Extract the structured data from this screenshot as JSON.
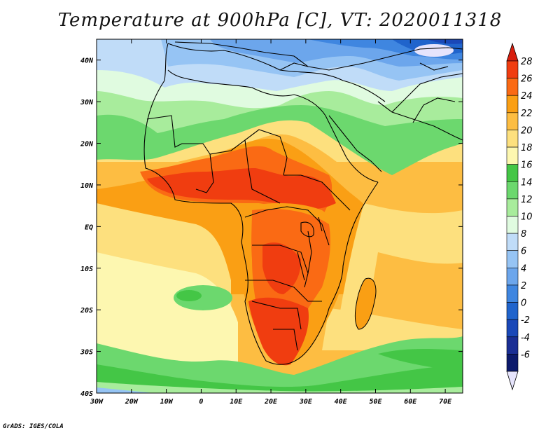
{
  "title": "Temperature at 900hPa [C], VT: 2020011318",
  "credit": "GrADS: IGES/COLA",
  "map": {
    "lon_labels": [
      "30W",
      "20W",
      "10W",
      "0",
      "10E",
      "20E",
      "30E",
      "40E",
      "50E",
      "60E",
      "70E"
    ],
    "lat_labels": [
      "40N",
      "30N",
      "20N",
      "10N",
      "EQ",
      "10S",
      "20S",
      "30S",
      "40S"
    ],
    "lon_range": [
      -30,
      75
    ],
    "lat_range": [
      -40,
      45
    ]
  },
  "colorbar": {
    "labels": [
      "28",
      "26",
      "24",
      "22",
      "20",
      "18",
      "16",
      "14",
      "12",
      "10",
      "8",
      "6",
      "4",
      "2",
      "0",
      "-2",
      "-4",
      "-6"
    ],
    "colors": [
      "#f03d10",
      "#fa6a14",
      "#fa9f14",
      "#fdbd42",
      "#fde07e",
      "#fdf7b0",
      "#44c646",
      "#6cd86e",
      "#a8ec9c",
      "#e0fbe0",
      "#c0dcf8",
      "#96c4f4",
      "#6ca6ec",
      "#3f86e0",
      "#2064cc",
      "#1a48b8",
      "#1a2e94",
      "#0c1a6c"
    ],
    "top_color": "#d81e0e",
    "bottom_color": "#e6e4fc"
  }
}
